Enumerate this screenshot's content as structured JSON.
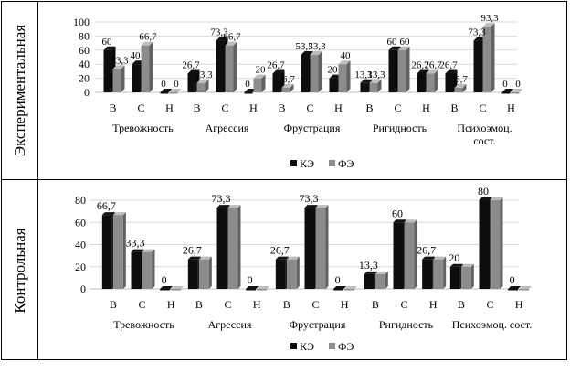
{
  "figure": {
    "groups": [
      "Тревожность",
      "Агрессия",
      "Фрустрация",
      "Ригидность",
      "Психоэмоц. сост."
    ],
    "levels": [
      "В",
      "С",
      "Н"
    ]
  },
  "chart_data": [
    {
      "type": "bar",
      "row_label": "Экспериментальная",
      "groups": [
        "Тревожность",
        "Агрессия",
        "Фрустрация",
        "Ригидность",
        "Психоэмоц. сост."
      ],
      "group_label_lines": [
        [
          "Тревожность"
        ],
        [
          "Агрессия"
        ],
        [
          "Фрустрация"
        ],
        [
          "Ригидность"
        ],
        [
          "Психоэмоц.",
          "сост."
        ]
      ],
      "categories": [
        "В",
        "С",
        "Н"
      ],
      "series": [
        {
          "name": "КЭ",
          "color": "#0d0d0d",
          "values": [
            [
              60,
              40,
              0
            ],
            [
              26.7,
              73.3,
              0
            ],
            [
              26.7,
              53.3,
              20
            ],
            [
              13.3,
              60,
              26.7
            ],
            [
              26.7,
              73.3,
              0
            ]
          ],
          "labels": [
            [
              "60",
              "40",
              "0"
            ],
            [
              "26,7",
              "73,3",
              "0"
            ],
            [
              "26,7",
              "53,3",
              "20"
            ],
            [
              "13,3",
              "60",
              "26,7"
            ],
            [
              "26,7",
              "73,3",
              "0"
            ]
          ]
        },
        {
          "name": "ФЭ",
          "color": "#8c8c8c",
          "values": [
            [
              33.3,
              66.7,
              0
            ],
            [
              13.3,
              66.7,
              20
            ],
            [
              6.7,
              53.3,
              40
            ],
            [
              13.3,
              60,
              26.7
            ],
            [
              6.7,
              93.3,
              0
            ]
          ],
          "labels": [
            [
              "33,3",
              "66,7",
              "0"
            ],
            [
              "13,3",
              "66,7",
              "20"
            ],
            [
              "6,7",
              "53,3",
              "40"
            ],
            [
              "13,3",
              "60",
              "26,7"
            ],
            [
              "6,7",
              "93,3",
              "0"
            ]
          ]
        }
      ],
      "yticks": [
        "0",
        "20",
        "40",
        "60",
        "80",
        "100"
      ],
      "ylim": [
        0,
        100
      ],
      "legend": [
        "КЭ",
        "ФЭ"
      ],
      "legend_position": "bottom"
    },
    {
      "type": "bar",
      "row_label": "Контрольная",
      "groups": [
        "Тревожность",
        "Агрессия",
        "Фрустрация",
        "Ригидность",
        "Психоэмоц. сост."
      ],
      "group_label_lines": [
        [
          "Тревожность"
        ],
        [
          "Агрессия"
        ],
        [
          "Фрустрация"
        ],
        [
          "Ригидность"
        ],
        [
          "Психоэмоц. сост."
        ]
      ],
      "categories": [
        "В",
        "С",
        "Н"
      ],
      "series": [
        {
          "name": "КЭ",
          "color": "#0d0d0d",
          "values": [
            [
              66.7,
              33.3,
              0
            ],
            [
              26.7,
              73.3,
              0
            ],
            [
              26.7,
              73.3,
              0
            ],
            [
              13.3,
              60,
              26.7
            ],
            [
              20,
              80,
              0
            ]
          ],
          "labels": [
            [
              "66,7",
              "33,3",
              "0"
            ],
            [
              "26,7",
              "73,3",
              "0"
            ],
            [
              "26,7",
              "73,3",
              "0"
            ],
            [
              "13,3",
              "60",
              "26,7"
            ],
            [
              "20",
              "80",
              "0"
            ]
          ]
        },
        {
          "name": "ФЭ",
          "color": "#8c8c8c",
          "values": [
            [
              66.7,
              33.3,
              0
            ],
            [
              26.7,
              73.3,
              0
            ],
            [
              26.7,
              73.3,
              0
            ],
            [
              13.3,
              60,
              26.7
            ],
            [
              20,
              80,
              0
            ]
          ],
          "labels": []
        }
      ],
      "yticks": [
        "0",
        "20",
        "40",
        "60",
        "80"
      ],
      "ylim": [
        0,
        80
      ],
      "legend": [
        "КЭ",
        "ФЭ"
      ],
      "legend_position": "bottom"
    }
  ]
}
